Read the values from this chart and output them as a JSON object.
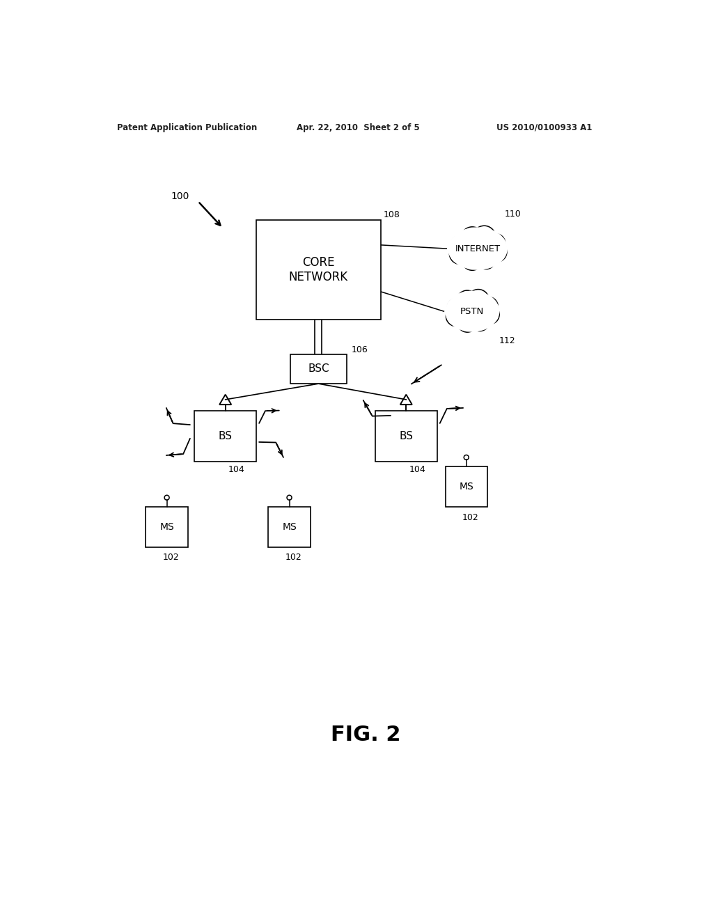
{
  "background_color": "#ffffff",
  "header_left": "Patent Application Publication",
  "header_middle": "Apr. 22, 2010  Sheet 2 of 5",
  "header_right": "US 2010/0100933 A1",
  "figure_label": "FIG. 2",
  "diagram_label": "100",
  "core_network_label": "CORE\nNETWORK",
  "core_network_ref": "108",
  "bsc_label": "BSC",
  "bsc_ref": "106",
  "internet_label": "INTERNET",
  "internet_ref": "110",
  "pstn_label": "PSTN",
  "pstn_ref": "112",
  "bs_label": "BS",
  "bs_ref": "104",
  "ms_label": "MS",
  "ms_ref": "102"
}
